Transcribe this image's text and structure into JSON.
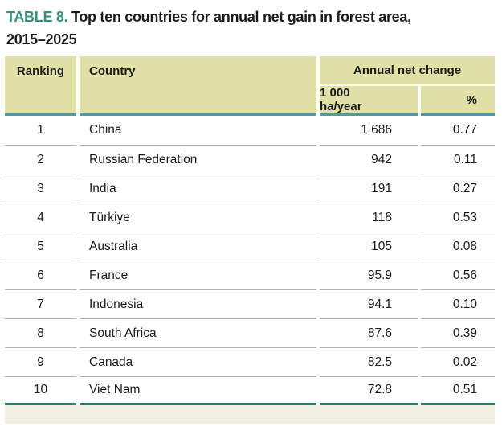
{
  "title": {
    "label": "TABLE 8.",
    "line1": "Top ten countries for annual net gain in forest area,",
    "line2": "2015–2025"
  },
  "table": {
    "headers": {
      "ranking": "Ranking",
      "country": "Country",
      "group": "Annual net change",
      "unit_ha": "1 000 ha/year",
      "unit_pct": "%"
    },
    "rows": [
      {
        "ranking": "1",
        "country": "China",
        "ha_per_year": "1 686",
        "pct": "0.77"
      },
      {
        "ranking": "2",
        "country": "Russian Federation",
        "ha_per_year": "942",
        "pct": "0.11"
      },
      {
        "ranking": "3",
        "country": "India",
        "ha_per_year": "191",
        "pct": "0.27"
      },
      {
        "ranking": "4",
        "country": "Türkiye",
        "ha_per_year": "118",
        "pct": "0.53"
      },
      {
        "ranking": "5",
        "country": "Australia",
        "ha_per_year": "105",
        "pct": "0.08"
      },
      {
        "ranking": "6",
        "country": "France",
        "ha_per_year": "95.9",
        "pct": "0.56"
      },
      {
        "ranking": "7",
        "country": "Indonesia",
        "ha_per_year": "94.1",
        "pct": "0.10"
      },
      {
        "ranking": "8",
        "country": "South Africa",
        "ha_per_year": "87.6",
        "pct": "0.39"
      },
      {
        "ranking": "9",
        "country": "Canada",
        "ha_per_year": "82.5",
        "pct": "0.02"
      },
      {
        "ranking": "10",
        "country": "Viet Nam",
        "ha_per_year": "72.8",
        "pct": "0.51"
      }
    ]
  },
  "colors": {
    "title_accent": "#35917f",
    "text": "#1b1b1b",
    "header_bg": "#dfe1a7",
    "header_border": "#4d9aa9",
    "group_underline": "#fbfbef",
    "row_separator": "#b3b3b3",
    "bottom_border": "#2f8170",
    "footer_band": "#eff0e1"
  }
}
